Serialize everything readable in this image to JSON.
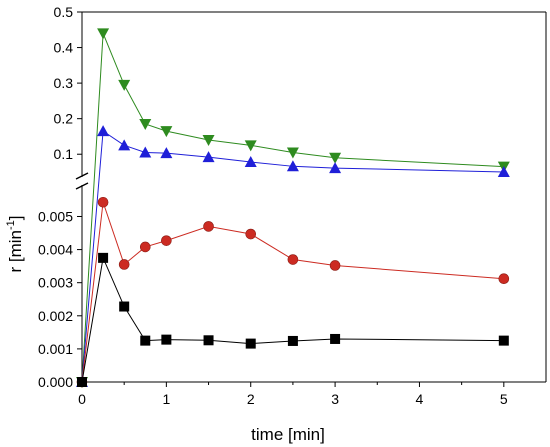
{
  "chart_data": {
    "type": "line",
    "title": "",
    "xlabel": "time [min]",
    "ylabel": "r [min",
    "ylabel_sup": "-1",
    "ylabel_close": "]",
    "xlim": [
      0,
      5.5
    ],
    "xticks": [
      "0",
      "1",
      "2",
      "3",
      "4",
      "5"
    ],
    "xtick_values": [
      0,
      1,
      2,
      3,
      4,
      5
    ],
    "broken_y_axis": true,
    "upper_ylim": [
      0.05,
      0.5
    ],
    "upper_yticks": [
      "0.1",
      "0.2",
      "0.3",
      "0.4",
      "0.5"
    ],
    "upper_ytick_values": [
      0.1,
      0.2,
      0.3,
      0.4,
      0.5
    ],
    "lower_ylim": [
      0,
      0.0058
    ],
    "lower_yticks": [
      "0.000",
      "0.001",
      "0.002",
      "0.003",
      "0.004",
      "0.005"
    ],
    "lower_ytick_values": [
      0,
      0.001,
      0.002,
      0.003,
      0.004,
      0.005
    ],
    "grid": false,
    "legend": "none",
    "series": [
      {
        "panel": "upper",
        "marker": "triangle-down",
        "color": "#2e8b1f",
        "x": [
          0,
          0.25,
          0.5,
          0.75,
          1,
          1.5,
          2,
          2.5,
          3,
          5
        ],
        "y": [
          0,
          0.44,
          0.295,
          0.185,
          0.165,
          0.14,
          0.125,
          0.105,
          0.09,
          0.065
        ]
      },
      {
        "panel": "upper",
        "marker": "triangle-up",
        "color": "#1f1fd8",
        "x": [
          0,
          0.25,
          0.5,
          0.75,
          1,
          1.5,
          2,
          2.5,
          3,
          5
        ],
        "y": [
          0,
          0.165,
          0.125,
          0.105,
          0.103,
          0.092,
          0.078,
          0.066,
          0.061,
          0.05
        ]
      },
      {
        "panel": "lower",
        "marker": "circle",
        "color": "#cc2b22",
        "x": [
          0,
          0.25,
          0.5,
          0.75,
          1,
          1.5,
          2,
          2.5,
          3,
          5
        ],
        "y": [
          0,
          0.00543,
          0.00355,
          0.00408,
          0.00427,
          0.0047,
          0.00447,
          0.0037,
          0.00352,
          0.00312
        ]
      },
      {
        "panel": "lower",
        "marker": "square",
        "color": "#000000",
        "x": [
          0,
          0.25,
          0.5,
          0.75,
          1,
          1.5,
          2,
          2.5,
          3,
          5
        ],
        "y": [
          0,
          0.00375,
          0.00228,
          0.00125,
          0.00128,
          0.00126,
          0.00116,
          0.00124,
          0.0013,
          0.00125
        ]
      }
    ]
  }
}
